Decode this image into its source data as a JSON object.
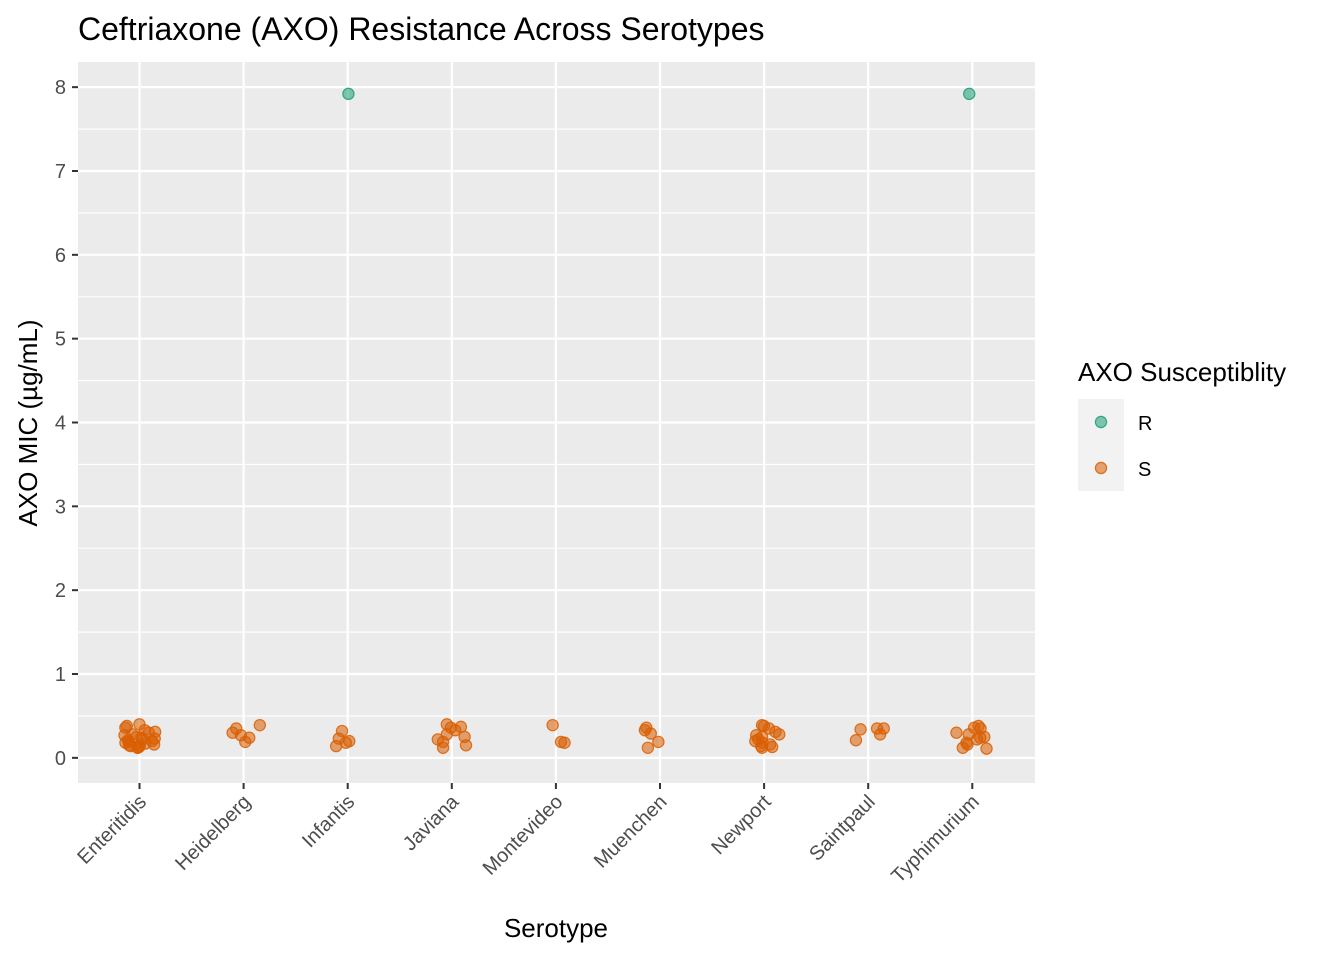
{
  "chart_data": {
    "type": "scatter",
    "title": "Ceftriaxone (AXO) Resistance Across Serotypes",
    "xlabel": "Serotype",
    "ylabel": "AXO MIC (µg/mL)",
    "categories": [
      "Enteritidis",
      "Heidelberg",
      "Infantis",
      "Javiana",
      "Montevideo",
      "Muenchen",
      "Newport",
      "Saintpaul",
      "Typhimurium"
    ],
    "ylim": [
      -0.3,
      8.3
    ],
    "yticks": [
      "0",
      "1",
      "2",
      "3",
      "4",
      "5",
      "6",
      "7",
      "8"
    ],
    "grid": true,
    "jitter": true,
    "legend": {
      "title": "AXO Susceptiblity",
      "placement": "right",
      "entries": [
        "R",
        "S"
      ]
    },
    "colors": {
      "R": "#1b9e77",
      "S": "#d95f02",
      "panel": "#ebebeb",
      "grid": "#ffffff"
    },
    "series": [
      {
        "name": "R",
        "points": [
          {
            "x": "Infantis",
            "y": 7.92
          },
          {
            "x": "Typhimurium",
            "y": 7.92
          }
        ]
      },
      {
        "name": "S",
        "points": [
          {
            "x": "Enteritidis",
            "y": 0.12
          },
          {
            "x": "Enteritidis",
            "y": 0.15
          },
          {
            "x": "Enteritidis",
            "y": 0.18
          },
          {
            "x": "Enteritidis",
            "y": 0.2
          },
          {
            "x": "Enteritidis",
            "y": 0.22
          },
          {
            "x": "Enteritidis",
            "y": 0.25
          },
          {
            "x": "Enteritidis",
            "y": 0.28
          },
          {
            "x": "Enteritidis",
            "y": 0.3
          },
          {
            "x": "Enteritidis",
            "y": 0.33
          },
          {
            "x": "Enteritidis",
            "y": 0.36
          },
          {
            "x": "Enteritidis",
            "y": 0.4
          },
          {
            "x": "Enteritidis",
            "y": 0.14
          },
          {
            "x": "Enteritidis",
            "y": 0.17
          },
          {
            "x": "Enteritidis",
            "y": 0.21
          },
          {
            "x": "Enteritidis",
            "y": 0.24
          },
          {
            "x": "Enteritidis",
            "y": 0.13
          },
          {
            "x": "Enteritidis",
            "y": 0.19
          },
          {
            "x": "Enteritidis",
            "y": 0.27
          },
          {
            "x": "Enteritidis",
            "y": 0.16
          },
          {
            "x": "Enteritidis",
            "y": 0.31
          },
          {
            "x": "Enteritidis",
            "y": 0.38
          },
          {
            "x": "Enteritidis",
            "y": 0.12
          },
          {
            "x": "Enteritidis",
            "y": 0.23
          },
          {
            "x": "Enteritidis",
            "y": 0.15
          },
          {
            "x": "Heidelberg",
            "y": 0.27
          },
          {
            "x": "Heidelberg",
            "y": 0.19
          },
          {
            "x": "Heidelberg",
            "y": 0.24
          },
          {
            "x": "Heidelberg",
            "y": 0.35
          },
          {
            "x": "Heidelberg",
            "y": 0.3
          },
          {
            "x": "Heidelberg",
            "y": 0.39
          },
          {
            "x": "Infantis",
            "y": 0.18
          },
          {
            "x": "Infantis",
            "y": 0.23
          },
          {
            "x": "Infantis",
            "y": 0.2
          },
          {
            "x": "Infantis",
            "y": 0.32
          },
          {
            "x": "Infantis",
            "y": 0.14
          },
          {
            "x": "Javiana",
            "y": 0.37
          },
          {
            "x": "Javiana",
            "y": 0.4
          },
          {
            "x": "Javiana",
            "y": 0.28
          },
          {
            "x": "Javiana",
            "y": 0.22
          },
          {
            "x": "Javiana",
            "y": 0.15
          },
          {
            "x": "Javiana",
            "y": 0.12
          },
          {
            "x": "Javiana",
            "y": 0.25
          },
          {
            "x": "Javiana",
            "y": 0.36
          },
          {
            "x": "Javiana",
            "y": 0.19
          },
          {
            "x": "Javiana",
            "y": 0.33
          },
          {
            "x": "Montevideo",
            "y": 0.39
          },
          {
            "x": "Montevideo",
            "y": 0.18
          },
          {
            "x": "Montevideo",
            "y": 0.19
          },
          {
            "x": "Muenchen",
            "y": 0.12
          },
          {
            "x": "Muenchen",
            "y": 0.29
          },
          {
            "x": "Muenchen",
            "y": 0.19
          },
          {
            "x": "Muenchen",
            "y": 0.36
          },
          {
            "x": "Muenchen",
            "y": 0.33
          },
          {
            "x": "Newport",
            "y": 0.14
          },
          {
            "x": "Newport",
            "y": 0.16
          },
          {
            "x": "Newport",
            "y": 0.35
          },
          {
            "x": "Newport",
            "y": 0.28
          },
          {
            "x": "Newport",
            "y": 0.22
          },
          {
            "x": "Newport",
            "y": 0.12
          },
          {
            "x": "Newport",
            "y": 0.38
          },
          {
            "x": "Newport",
            "y": 0.25
          },
          {
            "x": "Newport",
            "y": 0.31
          },
          {
            "x": "Newport",
            "y": 0.18
          },
          {
            "x": "Newport",
            "y": 0.39
          },
          {
            "x": "Newport",
            "y": 0.27
          },
          {
            "x": "Newport",
            "y": 0.2
          },
          {
            "x": "Newport",
            "y": 0.13
          },
          {
            "x": "Saintpaul",
            "y": 0.21
          },
          {
            "x": "Saintpaul",
            "y": 0.34
          },
          {
            "x": "Saintpaul",
            "y": 0.35
          },
          {
            "x": "Saintpaul",
            "y": 0.28
          },
          {
            "x": "Saintpaul",
            "y": 0.35
          },
          {
            "x": "Typhimurium",
            "y": 0.11
          },
          {
            "x": "Typhimurium",
            "y": 0.25
          },
          {
            "x": "Typhimurium",
            "y": 0.35
          },
          {
            "x": "Typhimurium",
            "y": 0.22
          },
          {
            "x": "Typhimurium",
            "y": 0.36
          },
          {
            "x": "Typhimurium",
            "y": 0.3
          },
          {
            "x": "Typhimurium",
            "y": 0.18
          },
          {
            "x": "Typhimurium",
            "y": 0.16
          },
          {
            "x": "Typhimurium",
            "y": 0.12
          },
          {
            "x": "Typhimurium",
            "y": 0.28
          },
          {
            "x": "Typhimurium",
            "y": 0.38
          },
          {
            "x": "Typhimurium",
            "y": 0.24
          }
        ]
      }
    ]
  }
}
